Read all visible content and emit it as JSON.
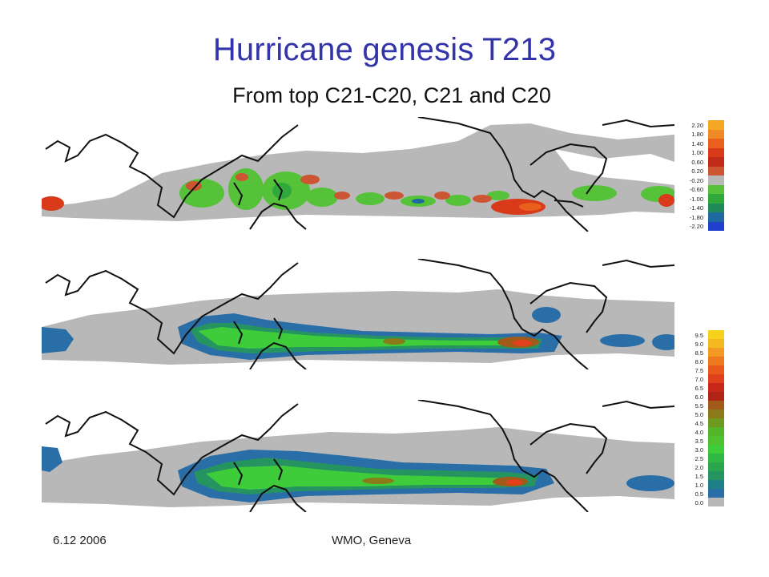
{
  "slide": {
    "title": "Hurricane genesis T213",
    "subtitle": "From  top C21-C20, C21 and C20",
    "footer_date": "6.12 2006",
    "footer_venue": "WMO, Geneva"
  },
  "colorbar_difference": {
    "labels": [
      "2.20",
      "1.80",
      "1.40",
      "1.00",
      "0.60",
      "0.20",
      "-0.20",
      "-0.60",
      "-1.00",
      "-1.40",
      "-1.80",
      "-2.20"
    ],
    "colors": [
      "#f5a623",
      "#f08a24",
      "#e8601c",
      "#d83a1a",
      "#c02a18",
      "#cc5533",
      "#b8b8b8",
      "#56c23a",
      "#2fa83c",
      "#1f8a5a",
      "#1e6aa0",
      "#1f3fcc"
    ]
  },
  "colorbar_frequency": {
    "labels": [
      "9.5",
      "9.0",
      "8.5",
      "8.0",
      "7.5",
      "7.0",
      "6.5",
      "6.0",
      "5.5",
      "5.0",
      "4.5",
      "4.0",
      "3.5",
      "3.0",
      "2.5",
      "2.0",
      "1.5",
      "1.0",
      "0.5",
      "0.0"
    ],
    "colors": [
      "#f7d21c",
      "#f5b820",
      "#f29a22",
      "#ee7a20",
      "#e85a1c",
      "#e0401a",
      "#c8281a",
      "#b02418",
      "#a05a1a",
      "#8a7a1a",
      "#6f9a22",
      "#54b42a",
      "#4fc12e",
      "#3fcc3a",
      "#31b843",
      "#2ba64e",
      "#259460",
      "#1f7f88",
      "#2a6ea8",
      "#b8b8b8"
    ]
  }
}
